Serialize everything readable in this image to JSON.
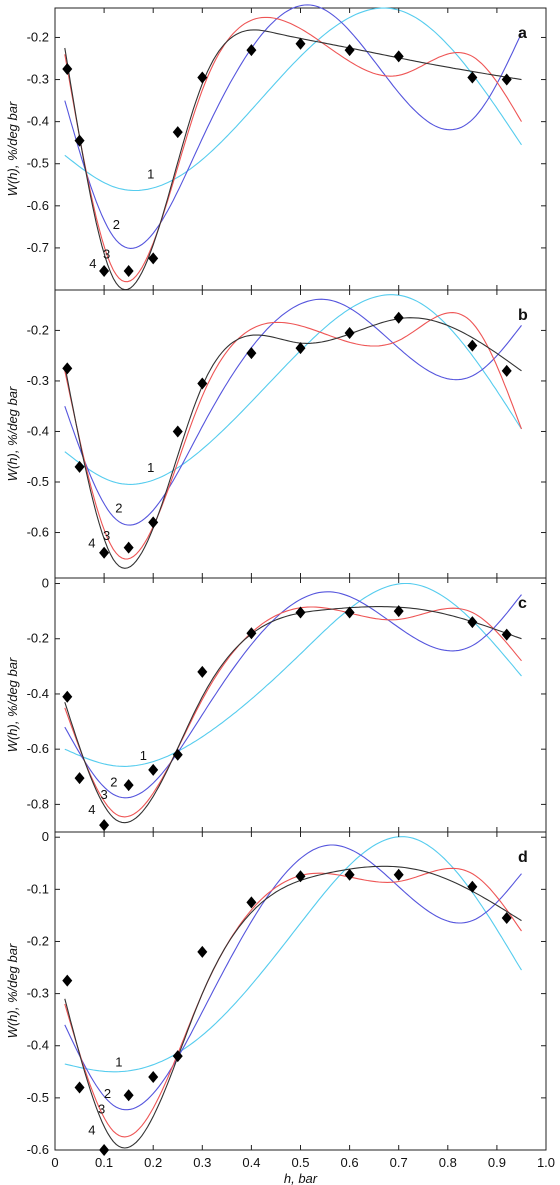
{
  "chart_data": [
    {
      "type": "line",
      "panel_label": "a",
      "ylabel": "W(h), %/deg  bar",
      "xlim": [
        0,
        1.0
      ],
      "ylim": [
        -0.8,
        -0.13
      ],
      "yticks": [
        -0.2,
        -0.3,
        -0.4,
        -0.5,
        -0.6,
        -0.7
      ],
      "ytick_labels": [
        "-0.2",
        "-0.3",
        "-0.4",
        "-0.5",
        "-0.6",
        "-0.7"
      ],
      "grid": false,
      "points": {
        "x": [
          0.025,
          0.05,
          0.1,
          0.15,
          0.2,
          0.25,
          0.3,
          0.4,
          0.5,
          0.6,
          0.7,
          0.85,
          0.92
        ],
        "y": [
          -0.275,
          -0.445,
          -0.755,
          -0.755,
          -0.725,
          -0.425,
          -0.295,
          -0.23,
          -0.215,
          -0.23,
          -0.245,
          -0.295,
          -0.3
        ]
      },
      "series": [
        {
          "name": "1",
          "color": "#55ccee",
          "x": [
            0.02,
            0.12,
            0.3,
            0.5,
            0.7,
            0.95
          ],
          "y": [
            -0.48,
            -0.555,
            -0.49,
            -0.245,
            -0.135,
            -0.455
          ]
        },
        {
          "name": "2",
          "color": "#5555dd",
          "x": [
            0.02,
            0.12,
            0.3,
            0.53,
            0.85,
            0.95
          ],
          "y": [
            -0.35,
            -0.675,
            -0.44,
            -0.125,
            -0.395,
            -0.19
          ]
        },
        {
          "name": "3",
          "color": "#ee5555",
          "x": [
            0.02,
            0.12,
            0.3,
            0.45,
            0.7,
            0.85,
            0.95
          ],
          "y": [
            -0.24,
            -0.755,
            -0.325,
            -0.155,
            -0.29,
            -0.245,
            -0.4
          ]
        },
        {
          "name": "4",
          "color": "#333333",
          "x": [
            0.02,
            0.12,
            0.3,
            0.45,
            0.6,
            0.75,
            0.95
          ],
          "y": [
            -0.225,
            -0.775,
            -0.31,
            -0.19,
            -0.225,
            -0.26,
            -0.3
          ]
        }
      ],
      "curve_labels": [
        {
          "text": "1",
          "x": 0.195,
          "y": -0.535
        },
        {
          "text": "2",
          "x": 0.125,
          "y": -0.655
        },
        {
          "text": "3",
          "x": 0.105,
          "y": -0.725
        },
        {
          "text": "4",
          "x": 0.077,
          "y": -0.748
        }
      ]
    },
    {
      "type": "line",
      "panel_label": "b",
      "ylabel": "W(h), %/deg  bar",
      "xlim": [
        0,
        1.0
      ],
      "ylim": [
        -0.69,
        -0.12
      ],
      "yticks": [
        -0.2,
        -0.3,
        -0.4,
        -0.5,
        -0.6
      ],
      "ytick_labels": [
        "-0.2",
        "-0.3",
        "-0.4",
        "-0.5",
        "-0.6"
      ],
      "grid": false,
      "points": {
        "x": [
          0.025,
          0.05,
          0.1,
          0.15,
          0.2,
          0.25,
          0.3,
          0.4,
          0.5,
          0.6,
          0.7,
          0.85,
          0.92
        ],
        "y": [
          -0.275,
          -0.47,
          -0.64,
          -0.63,
          -0.58,
          -0.4,
          -0.305,
          -0.245,
          -0.235,
          -0.205,
          -0.175,
          -0.23,
          -0.28
        ]
      },
      "series": [
        {
          "name": "1",
          "color": "#55ccee",
          "x": [
            0.02,
            0.12,
            0.3,
            0.5,
            0.72,
            0.95
          ],
          "y": [
            -0.44,
            -0.5,
            -0.435,
            -0.24,
            -0.135,
            -0.395
          ]
        },
        {
          "name": "2",
          "color": "#5555dd",
          "x": [
            0.02,
            0.12,
            0.3,
            0.56,
            0.85,
            0.95
          ],
          "y": [
            -0.35,
            -0.57,
            -0.39,
            -0.14,
            -0.29,
            -0.19
          ]
        },
        {
          "name": "3",
          "color": "#ee5555",
          "x": [
            0.02,
            0.12,
            0.3,
            0.47,
            0.7,
            0.85,
            0.95
          ],
          "y": [
            -0.28,
            -0.635,
            -0.33,
            -0.185,
            -0.22,
            -0.185,
            -0.395
          ]
        },
        {
          "name": "4",
          "color": "#333333",
          "x": [
            0.02,
            0.12,
            0.3,
            0.5,
            0.72,
            0.95
          ],
          "y": [
            -0.27,
            -0.655,
            -0.31,
            -0.225,
            -0.175,
            -0.28
          ]
        }
      ],
      "curve_labels": [
        {
          "text": "1",
          "x": 0.195,
          "y": -0.48
        },
        {
          "text": "2",
          "x": 0.13,
          "y": -0.56
        },
        {
          "text": "3",
          "x": 0.105,
          "y": -0.615
        },
        {
          "text": "4",
          "x": 0.075,
          "y": -0.63
        }
      ]
    },
    {
      "type": "line",
      "panel_label": "c",
      "ylabel": "W(h), %/deg  bar",
      "xlim": [
        0,
        1.0
      ],
      "ylim": [
        -0.9,
        0.02
      ],
      "yticks": [
        0,
        -0.2,
        -0.4,
        -0.6,
        -0.8
      ],
      "ytick_labels": [
        "0",
        "-0.2",
        "-0.4",
        "-0.6",
        "-0.8"
      ],
      "grid": false,
      "points": {
        "x": [
          0.025,
          0.05,
          0.1,
          0.15,
          0.2,
          0.25,
          0.3,
          0.4,
          0.5,
          0.6,
          0.7,
          0.85,
          0.92
        ],
        "y": [
          -0.41,
          -0.705,
          -0.875,
          -0.73,
          -0.675,
          -0.62,
          -0.32,
          -0.18,
          -0.105,
          -0.105,
          -0.1,
          -0.14,
          -0.185
        ]
      },
      "series": [
        {
          "name": "1",
          "color": "#55ccee",
          "x": [
            0.02,
            0.12,
            0.3,
            0.5,
            0.72,
            0.95
          ],
          "y": [
            -0.6,
            -0.66,
            -0.555,
            -0.255,
            0.0,
            -0.335
          ]
        },
        {
          "name": "2",
          "color": "#5555dd",
          "x": [
            0.02,
            0.12,
            0.3,
            0.56,
            0.85,
            0.95
          ],
          "y": [
            -0.52,
            -0.765,
            -0.475,
            -0.03,
            -0.225,
            -0.04
          ]
        },
        {
          "name": "3",
          "color": "#ee5555",
          "x": [
            0.02,
            0.12,
            0.3,
            0.52,
            0.7,
            0.85,
            0.95
          ],
          "y": [
            -0.45,
            -0.83,
            -0.42,
            -0.085,
            -0.13,
            -0.105,
            -0.28
          ]
        },
        {
          "name": "4",
          "color": "#333333",
          "x": [
            0.02,
            0.12,
            0.3,
            0.55,
            0.75,
            0.95
          ],
          "y": [
            -0.43,
            -0.85,
            -0.41,
            -0.095,
            -0.095,
            -0.2
          ]
        }
      ],
      "curve_labels": [
        {
          "text": "1",
          "x": 0.18,
          "y": -0.64
        },
        {
          "text": "2",
          "x": 0.12,
          "y": -0.735
        },
        {
          "text": "3",
          "x": 0.1,
          "y": -0.78
        },
        {
          "text": "4",
          "x": 0.075,
          "y": -0.835
        }
      ]
    },
    {
      "type": "line",
      "panel_label": "d",
      "ylabel": "W(h), %/deg  bar",
      "xlabel": "h, bar",
      "xlim": [
        0,
        1.0
      ],
      "xticks": [
        0,
        0.1,
        0.2,
        0.3,
        0.4,
        0.5,
        0.6,
        0.7,
        0.8,
        0.9,
        1.0
      ],
      "xtick_labels": [
        "0",
        "0.1",
        "0.2",
        "0.3",
        "0.4",
        "0.5",
        "0.6",
        "0.7",
        "0.8",
        "0.9",
        "1.0"
      ],
      "ylim": [
        -0.6,
        0.01
      ],
      "yticks": [
        0,
        -0.1,
        -0.2,
        -0.3,
        -0.4,
        -0.5,
        -0.6
      ],
      "ytick_labels": [
        "0",
        "-0.1",
        "-0.2",
        "-0.3",
        "-0.4",
        "-0.5",
        "-0.6"
      ],
      "grid": false,
      "points": {
        "x": [
          0.025,
          0.05,
          0.1,
          0.15,
          0.2,
          0.25,
          0.3,
          0.4,
          0.5,
          0.6,
          0.7,
          0.85,
          0.92
        ],
        "y": [
          -0.275,
          -0.48,
          -0.6,
          -0.495,
          -0.46,
          -0.42,
          -0.22,
          -0.125,
          -0.075,
          -0.072,
          -0.072,
          -0.095,
          -0.155
        ]
      },
      "series": [
        {
          "name": "1",
          "color": "#55ccee",
          "x": [
            0.02,
            0.12,
            0.3,
            0.5,
            0.72,
            0.95
          ],
          "y": [
            -0.435,
            -0.45,
            -0.38,
            -0.165,
            0.0,
            -0.255
          ]
        },
        {
          "name": "2",
          "color": "#5555dd",
          "x": [
            0.02,
            0.12,
            0.3,
            0.56,
            0.85,
            0.95
          ],
          "y": [
            -0.36,
            -0.515,
            -0.335,
            -0.015,
            -0.16,
            -0.07
          ]
        },
        {
          "name": "3",
          "color": "#ee5555",
          "x": [
            0.02,
            0.12,
            0.3,
            0.52,
            0.7,
            0.85,
            0.95
          ],
          "y": [
            -0.32,
            -0.565,
            -0.3,
            -0.07,
            -0.085,
            -0.07,
            -0.18
          ]
        },
        {
          "name": "4",
          "color": "#333333",
          "x": [
            0.02,
            0.12,
            0.3,
            0.55,
            0.75,
            0.95
          ],
          "y": [
            -0.31,
            -0.585,
            -0.3,
            -0.07,
            -0.065,
            -0.16
          ]
        }
      ],
      "curve_labels": [
        {
          "text": "1",
          "x": 0.13,
          "y": -0.44
        },
        {
          "text": "2",
          "x": 0.107,
          "y": -0.5
        },
        {
          "text": "3",
          "x": 0.095,
          "y": -0.53
        },
        {
          "text": "4",
          "x": 0.075,
          "y": -0.57
        }
      ]
    }
  ]
}
